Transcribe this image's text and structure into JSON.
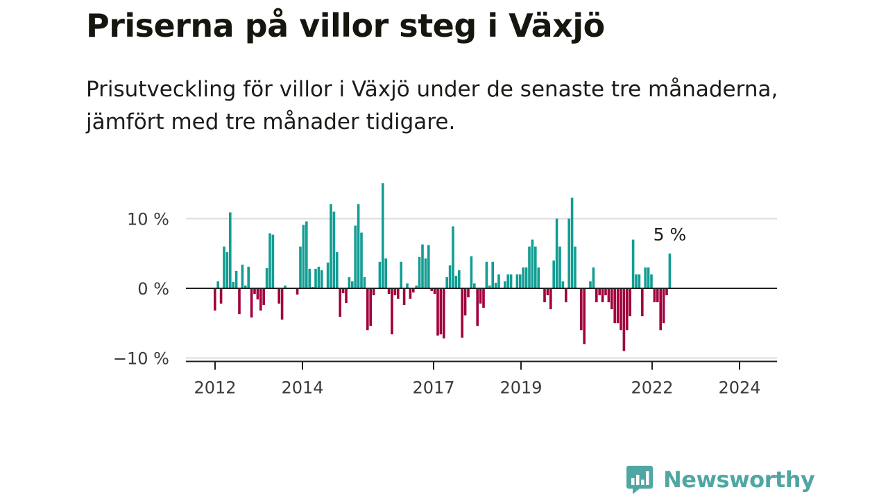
{
  "header": {
    "title": "Priserna på villor steg i Växjö",
    "subtitle": "Prisutveckling för villor i Växjö under de senaste tre månaderna, jämfört med tre månader tidigare."
  },
  "brand": {
    "name": "Newsworthy"
  },
  "colors": {
    "positive": "#129d93",
    "negative": "#a1003d",
    "accent": "#4fa6a2"
  },
  "chart_data": {
    "type": "bar",
    "title": "Priserna på villor steg i Växjö",
    "subtitle": "Prisutveckling för villor i Växjö under de senaste tre månaderna, jämfört med tre månader tidigare.",
    "xlabel": "",
    "ylabel": "",
    "ylim": [
      -10.5,
      15.5
    ],
    "y_ticks": [
      {
        "value": 10,
        "label": "10 %"
      },
      {
        "value": 0,
        "label": "0 %"
      },
      {
        "value": -10,
        "label": "−10 %"
      }
    ],
    "x_ticks": [
      {
        "value": 2012,
        "label": "2012"
      },
      {
        "value": 2014,
        "label": "2014"
      },
      {
        "value": 2017,
        "label": "2017"
      },
      {
        "value": 2019,
        "label": "2019"
      },
      {
        "value": 2022,
        "label": "2022"
      },
      {
        "value": 2024,
        "label": "2024"
      }
    ],
    "grid": true,
    "legend": "none",
    "annotation": {
      "text": "5 %",
      "value": 5
    },
    "x_start": "2012-01",
    "series": [
      {
        "values": [
          -3.2,
          1,
          -2.2,
          6,
          5.2,
          10.9,
          0.9,
          2.5,
          -3.7,
          3.4,
          0.4,
          3.1,
          -4.2,
          -0.8,
          -1.6,
          -3.2,
          -2.4,
          2.9,
          7.9,
          7.7,
          0,
          -2.2,
          -4.5,
          0.4,
          0,
          0,
          0,
          -0.9,
          6,
          9.1,
          9.6,
          2.8,
          0.2,
          2.8,
          3.1,
          2.6,
          0,
          3.7,
          12.1,
          11,
          5.2,
          -4.1,
          -0.7,
          -2.1,
          1.6,
          1,
          9,
          12.1,
          8,
          1.6,
          -6,
          -5.4,
          -1,
          0.1,
          3.8,
          15.1,
          4.3,
          -0.8,
          -6.6,
          -1,
          -1.5,
          3.8,
          -2.4,
          0.7,
          -1.5,
          -0.6,
          0.4,
          4.5,
          6.3,
          4.3,
          6.2,
          -0.4,
          -0.8,
          -6.8,
          -6.6,
          -7.2,
          1.6,
          3.3,
          8.9,
          1.8,
          2.6,
          -7.1,
          -3.9,
          -1.3,
          4.6,
          0.7,
          -5.4,
          -2.2,
          -2.8,
          3.8,
          0.4,
          3.8,
          0.8,
          2,
          0,
          1,
          2,
          2,
          0,
          2,
          2,
          3,
          3,
          6,
          7,
          6,
          3,
          0,
          -2,
          -1,
          -3,
          4,
          10,
          6,
          1,
          -2,
          10,
          13,
          6,
          0,
          -6,
          -8,
          0,
          1,
          3,
          -2,
          -1,
          -2,
          -1,
          -2,
          -3,
          -5,
          -5,
          -6,
          -9,
          -6,
          -4,
          7,
          2,
          2,
          -4,
          3,
          3,
          2,
          -2,
          -2,
          -6,
          -5,
          -1,
          5
        ]
      }
    ]
  }
}
